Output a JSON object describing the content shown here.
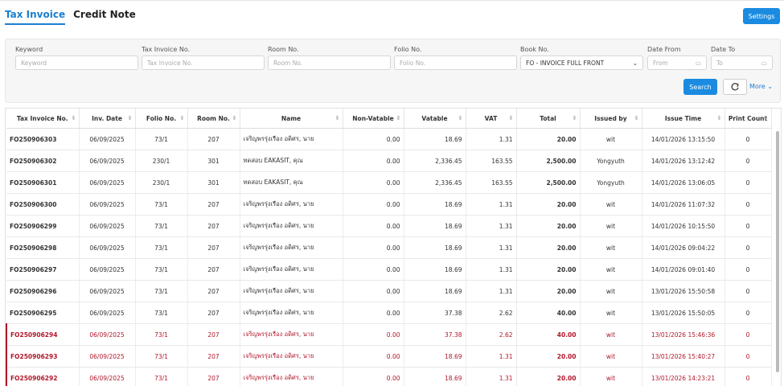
{
  "tabs": [
    "Tax Invoice",
    "Credit Note"
  ],
  "settings_button": "Settings",
  "filters": [
    {
      "label": "Keyword",
      "placeholder": "Keyword"
    },
    {
      "label": "Tax Invoice No.",
      "placeholder": "Tax Invoice No."
    },
    {
      "label": "Room No.",
      "placeholder": "Room No."
    },
    {
      "label": "Folio No.",
      "placeholder": "Folio No."
    },
    {
      "label": "Book No.",
      "placeholder": "FO - INVOICE FULL FRONT"
    },
    {
      "label": "Date From",
      "placeholder": "From"
    },
    {
      "label": "Date To",
      "placeholder": "To"
    }
  ],
  "search_button": "Search",
  "more_button": "More",
  "table": {
    "columns": [
      "Tax Invoice No.",
      "Inv. Date",
      "Folio No.",
      "Room No.",
      "Name",
      "Non-Vatable",
      "Vatable",
      "VAT",
      "Total",
      "Issued by",
      "Issue Time",
      "Print Count"
    ],
    "rows": [
      [
        "FO250906303",
        "06/09/2025",
        "73/1",
        "207",
        "เจริญพรรุ่งเรือง อดิศร, นาย",
        "0.00",
        "18.69",
        "1.31",
        "20.00",
        "wit",
        "14/01/2026 13:15:50",
        "0"
      ],
      [
        "FO250906302",
        "06/09/2025",
        "230/1",
        "301",
        "ทดสอบ EAKASIT, คุณ",
        "0.00",
        "2,336.45",
        "163.55",
        "2,500.00",
        "Yongyuth",
        "14/01/2026 13:12:42",
        "0"
      ],
      [
        "FO250906301",
        "06/09/2025",
        "230/1",
        "301",
        "ทดสอบ EAKASIT, คุณ",
        "0.00",
        "2,336.45",
        "163.55",
        "2,500.00",
        "Yongyuth",
        "14/01/2026 13:06:05",
        "0"
      ],
      [
        "FO250906300",
        "06/09/2025",
        "73/1",
        "207",
        "เจริญพรรุ่งเรือง อดิศร, นาย",
        "0.00",
        "18.69",
        "1.31",
        "20.00",
        "wit",
        "14/01/2026 11:07:32",
        "0"
      ],
      [
        "FO250906299",
        "06/09/2025",
        "73/1",
        "207",
        "เจริญพรรุ่งเรือง อดิศร, นาย",
        "0.00",
        "18.69",
        "1.31",
        "20.00",
        "wit",
        "14/01/2026 10:15:50",
        "0"
      ],
      [
        "FO250906298",
        "06/09/2025",
        "73/1",
        "207",
        "เจริญพรรุ่งเรือง อดิศร, นาย",
        "0.00",
        "18.69",
        "1.31",
        "20.00",
        "wit",
        "14/01/2026 09:04:22",
        "0"
      ],
      [
        "FO250906297",
        "06/09/2025",
        "73/1",
        "207",
        "เจริญพรรุ่งเรือง อดิศร, นาย",
        "0.00",
        "18.69",
        "1.31",
        "20.00",
        "wit",
        "14/01/2026 09:01:40",
        "0"
      ],
      [
        "FO250906296",
        "06/09/2025",
        "73/1",
        "207",
        "เจริญพรรุ่งเรือง อดิศร, นาย",
        "0.00",
        "18.69",
        "1.31",
        "20.00",
        "wit",
        "13/01/2026 15:50:58",
        "0"
      ],
      [
        "FO250906295",
        "06/09/2025",
        "73/1",
        "207",
        "เจริญพรรุ่งเรือง อดิศร, นาย",
        "0.00",
        "37.38",
        "2.62",
        "40.00",
        "wit",
        "13/01/2026 15:50:05",
        "0"
      ],
      [
        "FO250906294",
        "06/09/2025",
        "73/1",
        "207",
        "เจริญพรรุ่งเรือง อดิศร, นาย",
        "0.00",
        "37.38",
        "2.62",
        "40.00",
        "wit",
        "13/01/2026 15:46:36",
        "0"
      ],
      [
        "FO250906293",
        "06/09/2025",
        "73/1",
        "207",
        "เจริญพรรุ่งเรือง อดิศร, นาย",
        "0.00",
        "18.69",
        "1.31",
        "20.00",
        "wit",
        "13/01/2026 15:40:27",
        "0"
      ],
      [
        "FO250906292",
        "06/09/2025",
        "73/1",
        "207",
        "เจริญพรรุ่งเรือง อดิศร, นาย",
        "0.00",
        "18.69",
        "1.31",
        "20.00",
        "wit",
        "13/01/2026 14:23:21",
        "0"
      ]
    ]
  }
}
